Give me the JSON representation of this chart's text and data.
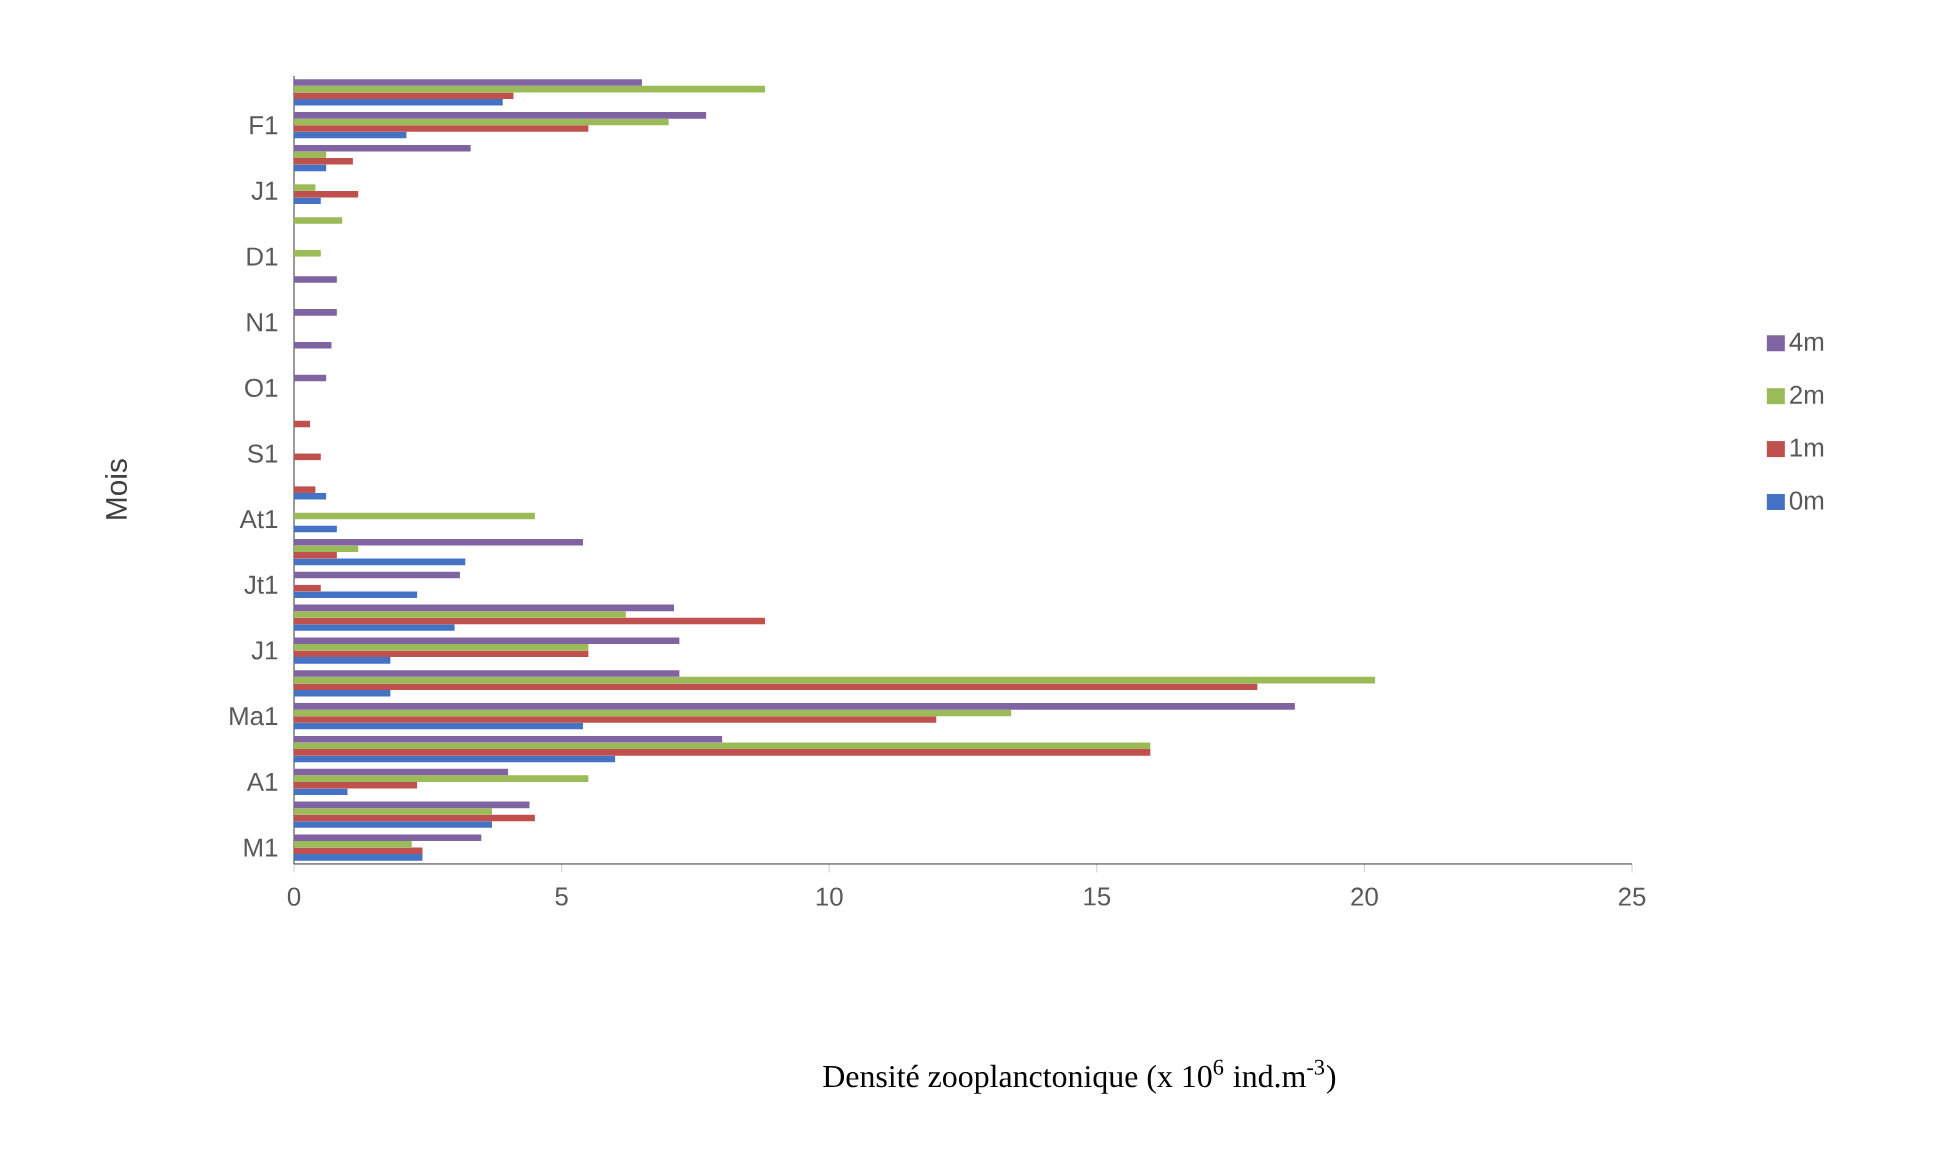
{
  "chart_data": {
    "type": "bar",
    "orientation": "horizontal",
    "xlabel": "Densité zooplanctonique (x 10$^{6}$ ind.m$^{-3}$)",
    "ylabel": "Mois",
    "categories": [
      null,
      "F1",
      null,
      "J1",
      null,
      "D1",
      null,
      "N1",
      null,
      "O1",
      null,
      "S1",
      null,
      "At1",
      null,
      "Jt1",
      null,
      "J1",
      null,
      "Ma1",
      null,
      "A1",
      null,
      "M1"
    ],
    "series": [
      {
        "name": "0m",
        "color": "#4472c4",
        "values": [
          3.9,
          2.1,
          0.6,
          0.5,
          0,
          0,
          0,
          0,
          0,
          0,
          0,
          0,
          0.6,
          0.8,
          3.2,
          2.3,
          3.0,
          1.8,
          1.8,
          5.4,
          6.0,
          1.0,
          3.7,
          2.4
        ]
      },
      {
        "name": "1m",
        "color": "#c0504d",
        "values": [
          4.1,
          5.5,
          1.1,
          1.2,
          0,
          0,
          0,
          0,
          0,
          0,
          0.3,
          0.5,
          0.4,
          0,
          0.8,
          0.5,
          8.8,
          5.5,
          18.0,
          12.0,
          16.0,
          2.3,
          4.5,
          2.4
        ]
      },
      {
        "name": "2m",
        "color": "#9bbb59",
        "values": [
          8.8,
          7.0,
          0.6,
          0.4,
          0.9,
          0.5,
          0,
          0,
          0,
          0,
          0,
          0,
          0,
          4.5,
          1.2,
          0,
          6.2,
          5.5,
          20.2,
          13.4,
          16.0,
          5.5,
          3.7,
          2.2
        ]
      },
      {
        "name": "4m",
        "color": "#8064a2",
        "values": [
          6.5,
          7.7,
          3.3,
          0,
          0,
          0,
          0.8,
          0.8,
          0.7,
          0.6,
          0,
          0,
          0,
          0,
          5.4,
          3.1,
          7.1,
          7.2,
          7.2,
          18.7,
          8.0,
          4.0,
          4.4,
          3.5
        ]
      }
    ],
    "xlim": [
      0,
      25
    ],
    "xticks": [
      0,
      5,
      10,
      15,
      20,
      25
    ],
    "legend": "right"
  }
}
